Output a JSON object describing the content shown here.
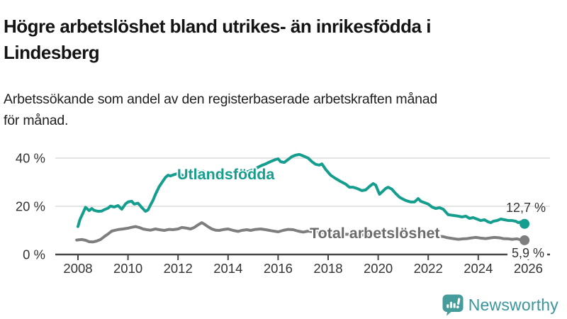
{
  "header": {
    "title_line1": "Högre arbetslöshet bland utrikes- än inrikesfödda i",
    "title_line2": "Lindesberg",
    "subtitle_line1": "Arbetssökande som andel av den registerbaserade arbetskraften månad",
    "subtitle_line2": "för månad."
  },
  "footer": {
    "brand": "Newsworthy"
  },
  "colors": {
    "accent_teal": "#159E8E",
    "series_gray": "#7E7E7E",
    "gray_label": "#6B6B6B",
    "teal_label": "#159E8E",
    "gridline": "#DBDBDB",
    "axis": "#474747",
    "axis_text": "#333333",
    "logo_teal": "#469B9B",
    "logo_text_teal": "#3A969A"
  },
  "chart_data": {
    "type": "line",
    "title": "Högre arbetslöshet bland utrikes- än inrikesfödda i Lindesberg",
    "subtitle": "Arbetssökande som andel av den registerbaserade arbetskraften månad för månad.",
    "unit": "%",
    "xlabel": "",
    "ylabel": "",
    "grid": "horizontal",
    "legend_position": "inline-labels",
    "xlim": [
      2007.6,
      2026.4
    ],
    "ylim": [
      0,
      45
    ],
    "x_ticks": [
      2008,
      2010,
      2012,
      2014,
      2016,
      2018,
      2020,
      2022,
      2024,
      2026
    ],
    "y_ticks": [
      {
        "value": 0,
        "label": "0 %"
      },
      {
        "value": 20,
        "label": "20 %"
      },
      {
        "value": 40,
        "label": "40 %"
      }
    ],
    "series": [
      {
        "name": "Utlandsfödda",
        "color": "#159E8E",
        "end_label": "12,7 %",
        "end_value": 12.7,
        "points": [
          [
            2008.0,
            11.6
          ],
          [
            2008.08,
            14.5
          ],
          [
            2008.2,
            17.2
          ],
          [
            2008.3,
            19.6
          ],
          [
            2008.45,
            18.2
          ],
          [
            2008.55,
            19.1
          ],
          [
            2008.65,
            18.3
          ],
          [
            2008.8,
            17.9
          ],
          [
            2008.95,
            18.0
          ],
          [
            2009.05,
            18.6
          ],
          [
            2009.2,
            19.2
          ],
          [
            2009.3,
            20.1
          ],
          [
            2009.45,
            19.7
          ],
          [
            2009.6,
            20.3
          ],
          [
            2009.75,
            18.8
          ],
          [
            2009.9,
            21.0
          ],
          [
            2010.0,
            21.8
          ],
          [
            2010.15,
            22.1
          ],
          [
            2010.25,
            20.9
          ],
          [
            2010.4,
            21.3
          ],
          [
            2010.55,
            19.5
          ],
          [
            2010.7,
            17.9
          ],
          [
            2010.8,
            18.5
          ],
          [
            2010.9,
            20.6
          ],
          [
            2011.0,
            22.5
          ],
          [
            2011.1,
            25.0
          ],
          [
            2011.25,
            28.2
          ],
          [
            2011.4,
            30.5
          ],
          [
            2011.5,
            32.0
          ],
          [
            2011.6,
            32.9
          ],
          [
            2011.7,
            32.6
          ],
          [
            2011.8,
            33.0
          ],
          [
            2011.95,
            33.5
          ],
          [
            2012.1,
            33.4
          ],
          [
            2012.2,
            32.6
          ],
          [
            2012.4,
            33.0
          ],
          [
            2012.6,
            33.6
          ],
          [
            2012.8,
            34.3
          ],
          [
            2013.0,
            34.6
          ],
          [
            2013.2,
            33.4
          ],
          [
            2013.4,
            32.6
          ],
          [
            2013.6,
            33.0
          ],
          [
            2013.8,
            33.4
          ],
          [
            2014.0,
            33.2
          ],
          [
            2014.2,
            33.0
          ],
          [
            2014.4,
            33.4
          ],
          [
            2014.6,
            34.0
          ],
          [
            2014.8,
            34.4
          ],
          [
            2015.0,
            35.2
          ],
          [
            2015.2,
            36.2
          ],
          [
            2015.35,
            37.0
          ],
          [
            2015.5,
            37.6
          ],
          [
            2015.6,
            38.1
          ],
          [
            2015.75,
            38.8
          ],
          [
            2015.9,
            39.4
          ],
          [
            2016.0,
            39.7
          ],
          [
            2016.1,
            38.5
          ],
          [
            2016.25,
            38.2
          ],
          [
            2016.4,
            39.4
          ],
          [
            2016.55,
            40.6
          ],
          [
            2016.7,
            41.2
          ],
          [
            2016.85,
            41.5
          ],
          [
            2017.0,
            40.9
          ],
          [
            2017.2,
            40.0
          ],
          [
            2017.35,
            38.5
          ],
          [
            2017.5,
            37.4
          ],
          [
            2017.65,
            37.1
          ],
          [
            2017.75,
            37.6
          ],
          [
            2017.9,
            35.3
          ],
          [
            2018.1,
            32.9
          ],
          [
            2018.3,
            31.5
          ],
          [
            2018.5,
            30.3
          ],
          [
            2018.7,
            29.2
          ],
          [
            2018.85,
            27.9
          ],
          [
            2019.0,
            27.9
          ],
          [
            2019.15,
            27.4
          ],
          [
            2019.35,
            26.5
          ],
          [
            2019.5,
            26.8
          ],
          [
            2019.65,
            28.2
          ],
          [
            2019.8,
            29.4
          ],
          [
            2019.9,
            28.8
          ],
          [
            2020.05,
            25.0
          ],
          [
            2020.15,
            25.9
          ],
          [
            2020.3,
            27.4
          ],
          [
            2020.4,
            27.9
          ],
          [
            2020.55,
            27.1
          ],
          [
            2020.7,
            25.3
          ],
          [
            2020.85,
            23.8
          ],
          [
            2021.0,
            22.9
          ],
          [
            2021.1,
            22.4
          ],
          [
            2021.3,
            21.8
          ],
          [
            2021.45,
            21.8
          ],
          [
            2021.6,
            23.2
          ],
          [
            2021.7,
            22.1
          ],
          [
            2021.85,
            21.5
          ],
          [
            2022.0,
            20.9
          ],
          [
            2022.15,
            19.7
          ],
          [
            2022.3,
            19.1
          ],
          [
            2022.45,
            19.4
          ],
          [
            2022.6,
            18.8
          ],
          [
            2022.8,
            16.5
          ],
          [
            2023.0,
            16.2
          ],
          [
            2023.2,
            15.9
          ],
          [
            2023.35,
            15.6
          ],
          [
            2023.5,
            15.9
          ],
          [
            2023.65,
            15.0
          ],
          [
            2023.8,
            15.3
          ],
          [
            2023.95,
            14.7
          ],
          [
            2024.1,
            14.1
          ],
          [
            2024.25,
            14.4
          ],
          [
            2024.4,
            13.5
          ],
          [
            2024.5,
            13.2
          ],
          [
            2024.6,
            13.8
          ],
          [
            2024.75,
            14.1
          ],
          [
            2024.9,
            14.7
          ],
          [
            2025.05,
            14.4
          ],
          [
            2025.2,
            14.1
          ],
          [
            2025.35,
            14.1
          ],
          [
            2025.5,
            13.8
          ],
          [
            2025.6,
            13.2
          ],
          [
            2025.7,
            13.5
          ],
          [
            2025.85,
            12.7
          ]
        ]
      },
      {
        "name": "Total arbetslöshet",
        "color": "#7E7E7E",
        "end_label": "5,9 %",
        "end_value": 5.9,
        "points": [
          [
            2007.95,
            6.0
          ],
          [
            2008.15,
            6.2
          ],
          [
            2008.3,
            5.9
          ],
          [
            2008.45,
            5.3
          ],
          [
            2008.6,
            5.2
          ],
          [
            2008.75,
            5.6
          ],
          [
            2008.9,
            6.2
          ],
          [
            2009.05,
            7.4
          ],
          [
            2009.2,
            8.5
          ],
          [
            2009.35,
            9.7
          ],
          [
            2009.5,
            10.1
          ],
          [
            2009.65,
            10.4
          ],
          [
            2009.8,
            10.6
          ],
          [
            2010.0,
            10.9
          ],
          [
            2010.15,
            11.3
          ],
          [
            2010.3,
            11.6
          ],
          [
            2010.45,
            11.2
          ],
          [
            2010.6,
            10.6
          ],
          [
            2010.75,
            10.3
          ],
          [
            2010.9,
            10.1
          ],
          [
            2011.1,
            10.6
          ],
          [
            2011.25,
            10.3
          ],
          [
            2011.45,
            10.0
          ],
          [
            2011.65,
            10.4
          ],
          [
            2011.8,
            10.3
          ],
          [
            2012.0,
            10.6
          ],
          [
            2012.15,
            11.2
          ],
          [
            2012.3,
            11.0
          ],
          [
            2012.5,
            10.6
          ],
          [
            2012.65,
            11.2
          ],
          [
            2012.8,
            12.3
          ],
          [
            2012.95,
            13.2
          ],
          [
            2013.05,
            12.6
          ],
          [
            2013.2,
            11.5
          ],
          [
            2013.35,
            10.6
          ],
          [
            2013.5,
            10.1
          ],
          [
            2013.65,
            10.0
          ],
          [
            2013.85,
            10.4
          ],
          [
            2014.0,
            10.6
          ],
          [
            2014.2,
            10.0
          ],
          [
            2014.4,
            9.6
          ],
          [
            2014.55,
            10.0
          ],
          [
            2014.75,
            10.3
          ],
          [
            2014.9,
            10.0
          ],
          [
            2015.1,
            10.4
          ],
          [
            2015.3,
            10.6
          ],
          [
            2015.5,
            10.3
          ],
          [
            2015.7,
            9.9
          ],
          [
            2016.0,
            9.4
          ],
          [
            2016.2,
            10.0
          ],
          [
            2016.4,
            10.4
          ],
          [
            2016.6,
            10.3
          ],
          [
            2016.8,
            9.7
          ],
          [
            2017.0,
            9.3
          ],
          [
            2017.2,
            9.7
          ],
          [
            2017.5,
            9.3
          ],
          [
            2017.8,
            9.0
          ],
          [
            2018.0,
            8.8
          ],
          [
            2018.3,
            8.6
          ],
          [
            2018.6,
            8.4
          ],
          [
            2019.0,
            8.3
          ],
          [
            2019.4,
            8.1
          ],
          [
            2019.7,
            8.3
          ],
          [
            2020.0,
            8.6
          ],
          [
            2020.3,
            9.6
          ],
          [
            2020.45,
            9.9
          ],
          [
            2020.7,
            9.6
          ],
          [
            2021.0,
            9.2
          ],
          [
            2021.3,
            8.9
          ],
          [
            2021.6,
            8.5
          ],
          [
            2021.9,
            8.1
          ],
          [
            2022.2,
            7.8
          ],
          [
            2022.45,
            7.5
          ],
          [
            2022.6,
            7.4
          ],
          [
            2022.75,
            7.0
          ],
          [
            2023.0,
            6.6
          ],
          [
            2023.2,
            6.3
          ],
          [
            2023.4,
            6.5
          ],
          [
            2023.55,
            6.6
          ],
          [
            2023.75,
            6.9
          ],
          [
            2023.9,
            7.1
          ],
          [
            2024.1,
            6.8
          ],
          [
            2024.3,
            6.6
          ],
          [
            2024.5,
            6.9
          ],
          [
            2024.65,
            7.1
          ],
          [
            2024.85,
            6.9
          ],
          [
            2025.0,
            6.6
          ],
          [
            2025.2,
            6.5
          ],
          [
            2025.35,
            6.3
          ],
          [
            2025.55,
            6.5
          ],
          [
            2025.7,
            6.1
          ],
          [
            2025.85,
            5.9
          ]
        ]
      }
    ]
  }
}
